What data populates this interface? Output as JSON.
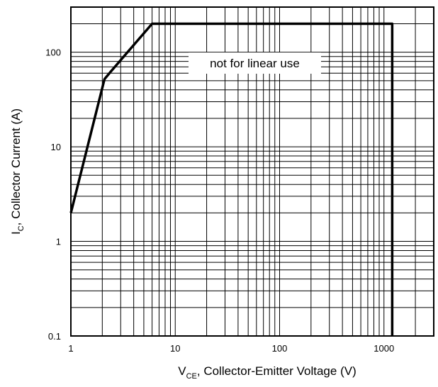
{
  "chart_data": {
    "type": "line",
    "x_scale": "log",
    "y_scale": "log",
    "xlim": [
      1,
      3000
    ],
    "ylim": [
      0.1,
      300
    ],
    "grid": true,
    "xlabel": {
      "main": "V",
      "sub": "CE",
      "rest": ", Collector-Emitter Voltage (V)"
    },
    "ylabel": {
      "main": "I",
      "sub": "C",
      "rest": ", Collector Current (A)"
    },
    "x_ticks": [
      {
        "value": 1,
        "label": "1"
      },
      {
        "value": 10,
        "label": "10"
      },
      {
        "value": 100,
        "label": "100"
      },
      {
        "value": 1000,
        "label": "1000"
      }
    ],
    "y_ticks": [
      {
        "value": 0.1,
        "label": "0.1"
      },
      {
        "value": 1,
        "label": "1"
      },
      {
        "value": 10,
        "label": "10"
      },
      {
        "value": 100,
        "label": "100"
      }
    ],
    "annotation": {
      "text": "not for linear use",
      "x": 40,
      "y": 100
    },
    "series": [
      {
        "color": "#000000",
        "points": [
          {
            "x": 1,
            "y": 2
          },
          {
            "x": 2.1,
            "y": 52
          },
          {
            "x": 2.4,
            "y": 62
          },
          {
            "x": 6,
            "y": 200
          },
          {
            "x": 1150,
            "y": 200
          },
          {
            "x": 1200,
            "y": 200
          },
          {
            "x": 1200,
            "y": 0.1
          }
        ]
      }
    ]
  }
}
